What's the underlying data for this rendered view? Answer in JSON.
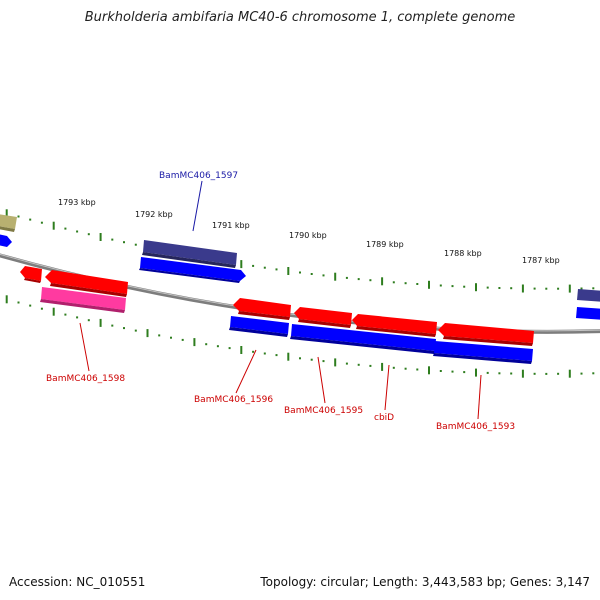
{
  "title": "Burkholderia ambifaria MC40-6 chromosome 1, complete genome",
  "footer": {
    "accession_label": "Accession: NC_010551",
    "summary": "Topology: circular; Length: 3,443,583 bp; Genes: 3,147"
  },
  "colors": {
    "backbone": "#8a8a8a",
    "tick": "#2e7d1e",
    "cds_forward": "#0000ff",
    "gene_forward": "#3a3a8c",
    "gene_reverse": "#ff0000",
    "misc_reverse": "#ff3aa0",
    "other": "#b8b070",
    "label_forward": "#1a1aa6",
    "label_reverse": "#cc0000"
  },
  "kbp_labels": [
    "1793 kbp",
    "1792 kbp",
    "1791 kbp",
    "1790 kbp",
    "1789 kbp",
    "1788 kbp",
    "1787 kbp"
  ],
  "gene_labels": [
    {
      "text": "BamMC406_1597",
      "strand": "forward"
    },
    {
      "text": "BamMC406_1598",
      "strand": "reverse"
    },
    {
      "text": "BamMC406_1596",
      "strand": "reverse"
    },
    {
      "text": "BamMC406_1595",
      "strand": "reverse"
    },
    {
      "text": "cbiD",
      "strand": "reverse"
    },
    {
      "text": "BamMC406_1593",
      "strand": "reverse"
    }
  ]
}
